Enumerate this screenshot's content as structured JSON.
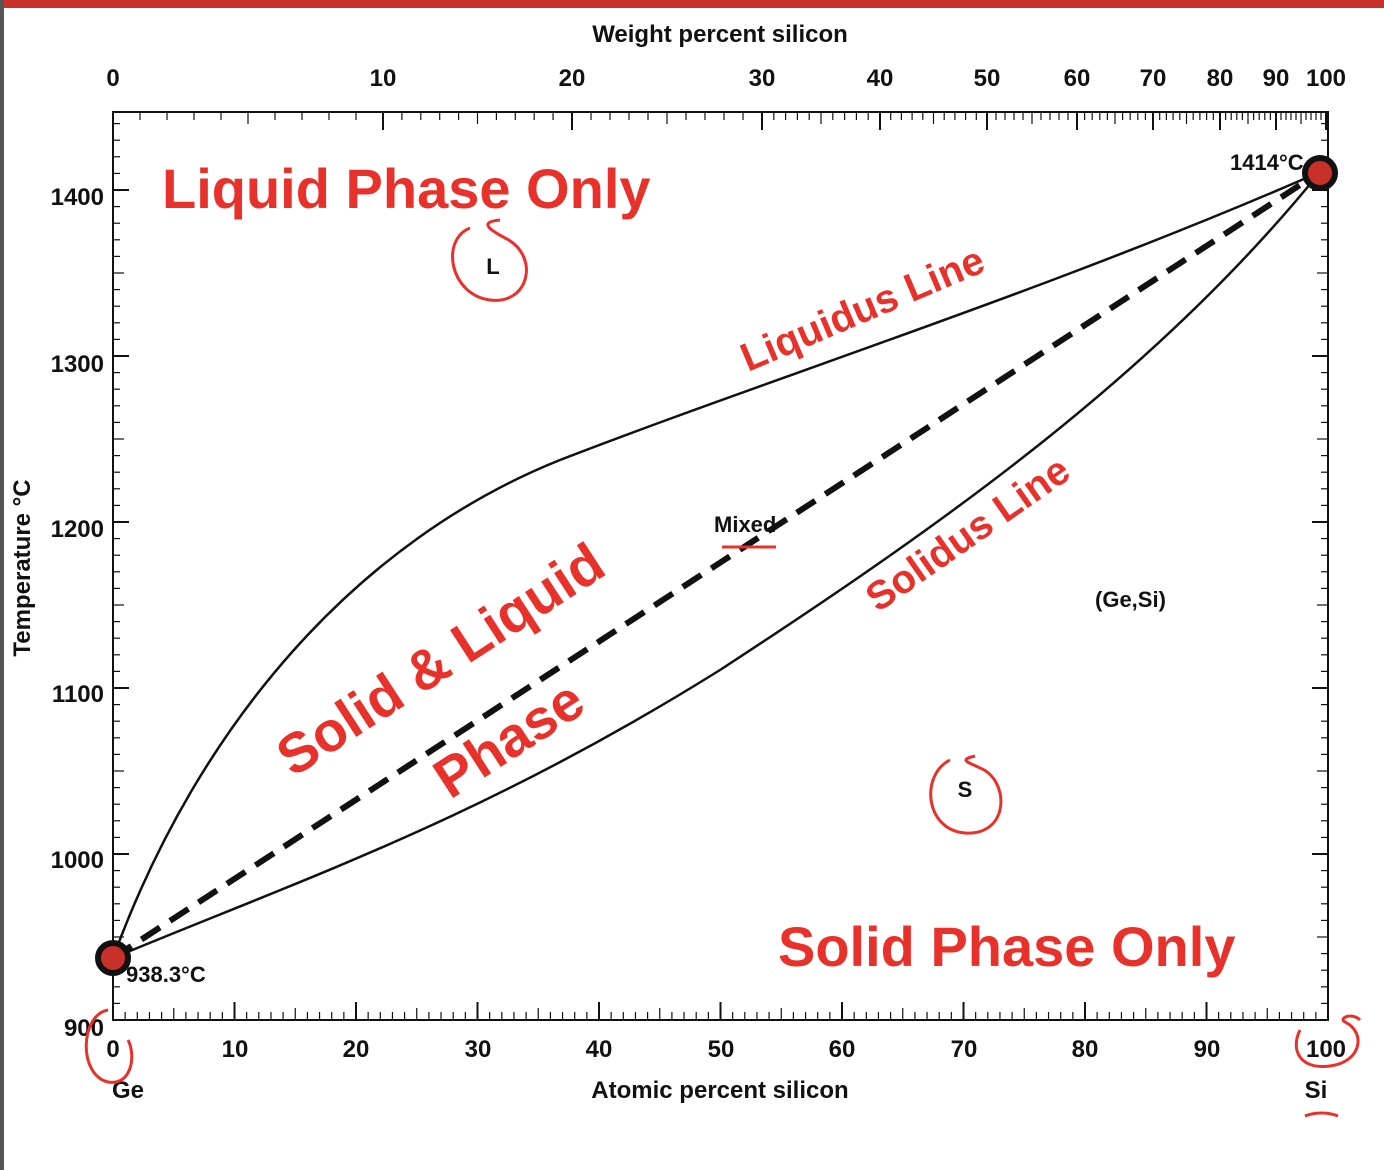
{
  "diagram": {
    "top_axis": {
      "title": "Weight percent silicon",
      "ticks": [
        "0",
        "10",
        "20",
        "30",
        "40",
        "50",
        "60",
        "70",
        "80",
        "90",
        "100"
      ]
    },
    "bottom_axis": {
      "title": "Atomic percent silicon",
      "ticks": [
        "0",
        "10",
        "20",
        "30",
        "40",
        "50",
        "60",
        "70",
        "80",
        "90",
        "100"
      ],
      "left_element": "Ge",
      "right_element": "Si"
    },
    "left_axis": {
      "title": "Temperature °C",
      "ticks": [
        "900",
        "1000",
        "1100",
        "1200",
        "1300",
        "1400"
      ]
    },
    "labels": {
      "liquid_only": "Liquid Phase Only",
      "solid_only": "Solid Phase Only",
      "solid_liquid_line1": "Solid & Liquid",
      "solid_liquid_line2": "Phase",
      "liquidus": "Liquidus Line",
      "solidus": "Solidus Line",
      "mixed": "Mixed",
      "L": "L",
      "S": "S",
      "ge_si": "(Ge,Si)",
      "si_melting": "1414°C",
      "ge_melting": "938.3°C"
    },
    "colors": {
      "annotation_red": "#e8312a",
      "line_black": "#111111",
      "point_fill": "#c8302a"
    }
  }
}
